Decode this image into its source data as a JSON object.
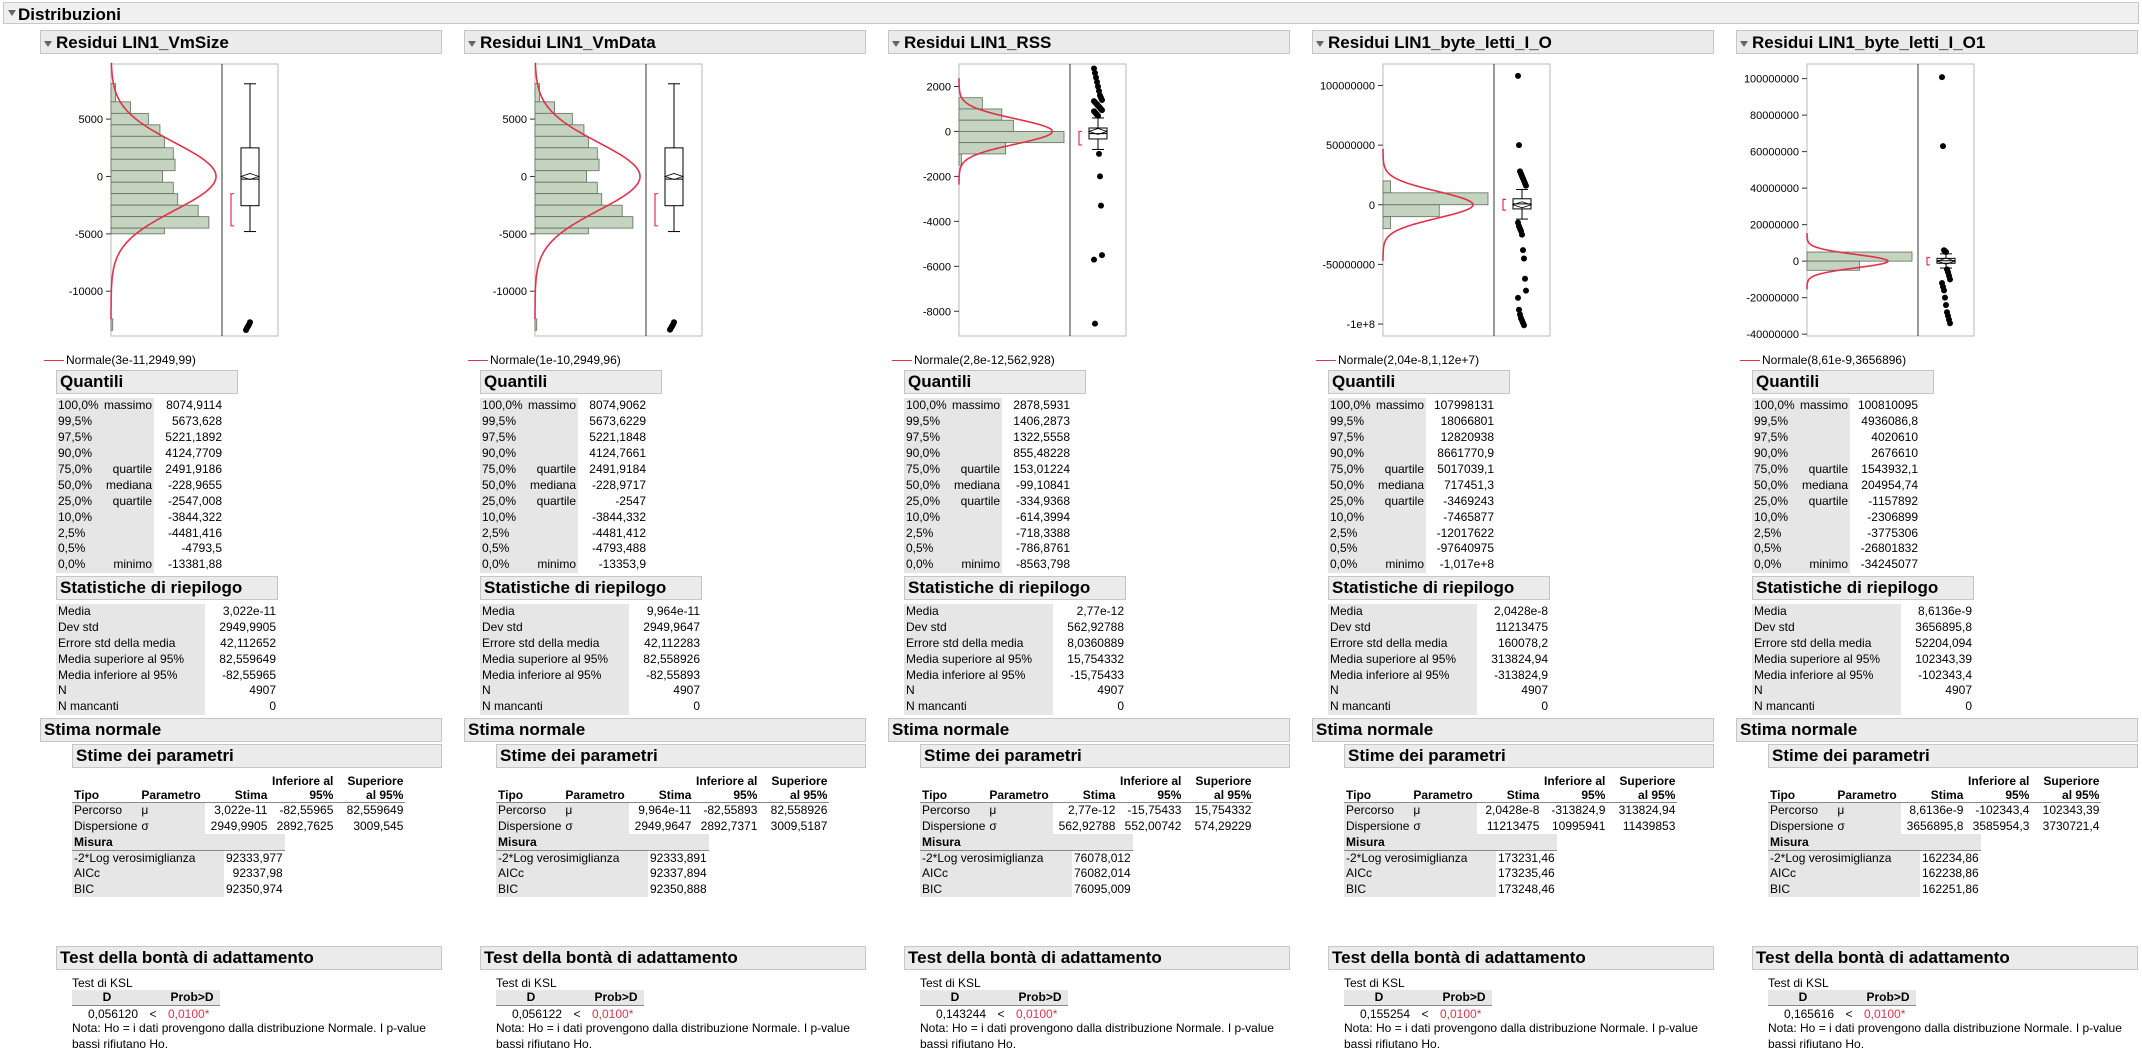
{
  "window_title": "Distribuzioni",
  "common": {
    "quantili": "Quantili",
    "statistiche": "Statistiche di riepilogo",
    "stima_normale": "Stima normale",
    "stime_parametri": "Stime dei parametri",
    "col_tipo": "Tipo",
    "col_parametro": "Parametro",
    "col_stima": "Stima",
    "col_inf": "Inferiore al 95%",
    "col_sup": "Superiore al 95%",
    "row_percorso": "Percorso",
    "row_dispersione": "Dispersione",
    "mu": "μ",
    "sigma": "σ",
    "misura": "Misura",
    "m_logver": "-2*Log verosimiglianza",
    "m_aicc": "AICc",
    "m_bic": "BIC",
    "test_bonta": "Test della bontà di adattamento",
    "test_ksl": "Test di KSL",
    "col_d": "D",
    "col_prob": "Prob>D",
    "less_than": "<",
    "nota": "Nota: Ho = i dati provengono dalla distribuzione Normale. I p-value bassi rifiutano Ho.",
    "quantile_rows": [
      {
        "pct": "100,0%",
        "lbl": "massimo"
      },
      {
        "pct": "99,5%",
        "lbl": ""
      },
      {
        "pct": "97,5%",
        "lbl": ""
      },
      {
        "pct": "90,0%",
        "lbl": ""
      },
      {
        "pct": "75,0%",
        "lbl": "quartile"
      },
      {
        "pct": "50,0%",
        "lbl": "mediana"
      },
      {
        "pct": "25,0%",
        "lbl": "quartile"
      },
      {
        "pct": "10,0%",
        "lbl": ""
      },
      {
        "pct": "2,5%",
        "lbl": ""
      },
      {
        "pct": "0,5%",
        "lbl": ""
      },
      {
        "pct": "0,0%",
        "lbl": "minimo"
      }
    ],
    "stat_labels": [
      "Media",
      "Dev std",
      "Errore std della media",
      "Media superiore al 95%",
      "Media inferiore al 95%",
      "N",
      "N mancanti"
    ],
    "colors": {
      "curve": "#e0324b",
      "bar": "#c4d4c0",
      "pvalue": "#e0324b"
    }
  },
  "panels": [
    {
      "title": "Residui LIN1_VmSize",
      "legend": "Normale(3e-11,2949,99)",
      "quantiles": [
        "8074,9114",
        "5673,628",
        "5221,1892",
        "4124,7709",
        "2491,9186",
        "-228,9655",
        "-2547,008",
        "-3844,322",
        "-4481,416",
        "-4793,5",
        "-13381,88"
      ],
      "stats": [
        "3,022e-11",
        "2949,9905",
        "42,112652",
        "82,559649",
        "-82,55965",
        "4907",
        "0"
      ],
      "params": {
        "mu": [
          "3,022e-11",
          "-82,55965",
          "82,559649"
        ],
        "sigma": [
          "2949,9905",
          "2892,7625",
          "3009,545"
        ]
      },
      "measures": [
        "92333,977",
        "92337,98",
        "92350,974"
      ],
      "ksl": {
        "d": "0,056120",
        "p": "0,0100*"
      },
      "chart_data": {
        "type": "histogram",
        "yticks": [
          {
            "v": 5000,
            "label": "5000"
          },
          {
            "v": 0,
            "label": "0"
          },
          {
            "v": -5000,
            "label": "-5000"
          },
          {
            "v": -10000,
            "label": "-10000"
          }
        ],
        "ylim": [
          -13900,
          9800
        ],
        "bins": [
          {
            "lo": 6500,
            "hi": 8100,
            "c": 5
          },
          {
            "lo": 5500,
            "hi": 6500,
            "c": 22
          },
          {
            "lo": 4500,
            "hi": 5500,
            "c": 42
          },
          {
            "lo": 3500,
            "hi": 4500,
            "c": 55
          },
          {
            "lo": 2500,
            "hi": 3500,
            "c": 60
          },
          {
            "lo": 1500,
            "hi": 2500,
            "c": 70
          },
          {
            "lo": 500,
            "hi": 1500,
            "c": 72
          },
          {
            "lo": -500,
            "hi": 500,
            "c": 58
          },
          {
            "lo": -1500,
            "hi": -500,
            "c": 70
          },
          {
            "lo": -2500,
            "hi": -1500,
            "c": 75
          },
          {
            "lo": -3500,
            "hi": -2500,
            "c": 98
          },
          {
            "lo": -4500,
            "hi": -3500,
            "c": 110
          },
          {
            "lo": -5000,
            "hi": -4500,
            "c": 60
          },
          {
            "lo": -13400,
            "hi": -12400,
            "c": 2
          }
        ],
        "normal": {
          "mu": 0,
          "sd": 2950,
          "peak": 118
        },
        "box": {
          "min": -4800,
          "q1": -2547,
          "median": -229,
          "q3": 2492,
          "max": 8075,
          "mean": 0,
          "shortest_half": [
            -4300,
            -1500
          ]
        },
        "outliers": [
          -13380,
          -13200,
          -13050,
          -12900,
          -12700
        ]
      }
    },
    {
      "title": "Residui LIN1_VmData",
      "legend": "Normale(1e-10,2949,96)",
      "quantiles": [
        "8074,9062",
        "5673,6229",
        "5221,1848",
        "4124,7661",
        "2491,9184",
        "-228,9717",
        "-2547",
        "-3844,332",
        "-4481,412",
        "-4793,488",
        "-13353,9"
      ],
      "stats": [
        "9,964e-11",
        "2949,9647",
        "42,112283",
        "82,558926",
        "-82,55893",
        "4907",
        "0"
      ],
      "params": {
        "mu": [
          "9,964e-11",
          "-82,55893",
          "82,558926"
        ],
        "sigma": [
          "2949,9647",
          "2892,7371",
          "3009,5187"
        ]
      },
      "measures": [
        "92333,891",
        "92337,894",
        "92350,888"
      ],
      "ksl": {
        "d": "0,056122",
        "p": "0,0100*"
      },
      "chart_data": {
        "type": "histogram",
        "yticks": [
          {
            "v": 5000,
            "label": "5000"
          },
          {
            "v": 0,
            "label": "0"
          },
          {
            "v": -5000,
            "label": "-5000"
          },
          {
            "v": -10000,
            "label": "-10000"
          }
        ],
        "ylim": [
          -13900,
          9800
        ],
        "bins": [
          {
            "lo": 6500,
            "hi": 8100,
            "c": 5
          },
          {
            "lo": 5500,
            "hi": 6500,
            "c": 22
          },
          {
            "lo": 4500,
            "hi": 5500,
            "c": 42
          },
          {
            "lo": 3500,
            "hi": 4500,
            "c": 55
          },
          {
            "lo": 2500,
            "hi": 3500,
            "c": 60
          },
          {
            "lo": 1500,
            "hi": 2500,
            "c": 70
          },
          {
            "lo": 500,
            "hi": 1500,
            "c": 72
          },
          {
            "lo": -500,
            "hi": 500,
            "c": 58
          },
          {
            "lo": -1500,
            "hi": -500,
            "c": 70
          },
          {
            "lo": -2500,
            "hi": -1500,
            "c": 75
          },
          {
            "lo": -3500,
            "hi": -2500,
            "c": 98
          },
          {
            "lo": -4500,
            "hi": -3500,
            "c": 110
          },
          {
            "lo": -5000,
            "hi": -4500,
            "c": 60
          },
          {
            "lo": -13400,
            "hi": -12400,
            "c": 2
          }
        ],
        "normal": {
          "mu": 0,
          "sd": 2950,
          "peak": 118
        },
        "box": {
          "min": -4800,
          "q1": -2547,
          "median": -229,
          "q3": 2492,
          "max": 8075,
          "mean": 0,
          "shortest_half": [
            -4300,
            -1500
          ]
        },
        "outliers": [
          -13350,
          -13200,
          -13050,
          -12900,
          -12700
        ]
      }
    },
    {
      "title": "Residui LIN1_RSS",
      "legend": "Normale(2,8e-12,562,928)",
      "quantiles": [
        "2878,5931",
        "1406,2873",
        "1322,5558",
        "855,48228",
        "153,01224",
        "-99,10841",
        "-334,9368",
        "-614,3994",
        "-718,3388",
        "-786,8761",
        "-8563,798"
      ],
      "stats": [
        "2,77e-12",
        "562,92788",
        "8,0360889",
        "15,754332",
        "-15,75433",
        "4907",
        "0"
      ],
      "params": {
        "mu": [
          "2,77e-12",
          "-15,75433",
          "15,754332"
        ],
        "sigma": [
          "562,92788",
          "552,00742",
          "574,29229"
        ]
      },
      "measures": [
        "76078,012",
        "76082,014",
        "76095,009"
      ],
      "ksl": {
        "d": "0,143244",
        "p": "0,0100*"
      },
      "chart_data": {
        "type": "histogram",
        "yticks": [
          {
            "v": 2000,
            "label": "2000"
          },
          {
            "v": 0,
            "label": "0"
          },
          {
            "v": -2000,
            "label": "-2000"
          },
          {
            "v": -4000,
            "label": "-4000"
          },
          {
            "v": -6000,
            "label": "-6000"
          },
          {
            "v": -8000,
            "label": "-8000"
          }
        ],
        "ylim": [
          -9100,
          3000
        ],
        "bins": [
          {
            "lo": 1000,
            "hi": 1500,
            "c": 30
          },
          {
            "lo": 500,
            "hi": 1000,
            "c": 55
          },
          {
            "lo": 0,
            "hi": 500,
            "c": 70
          },
          {
            "lo": -500,
            "hi": 0,
            "c": 135
          },
          {
            "lo": -1000,
            "hi": -500,
            "c": 60
          },
          {
            "lo": -1500,
            "hi": -1000,
            "c": 3
          }
        ],
        "normal": {
          "mu": 0,
          "sd": 563,
          "peak": 120
        },
        "box": {
          "min": -800,
          "q1": -335,
          "median": -99,
          "q3": 153,
          "max": 600,
          "mean": 0,
          "shortest_half": [
            -600,
            0
          ]
        },
        "outliers": [
          2800,
          2600,
          2400,
          2200,
          2000,
          1800,
          1600,
          1500,
          1400,
          1350,
          1300,
          1250,
          1200,
          1150,
          1100,
          1050,
          1000,
          950,
          900,
          850,
          800,
          750,
          700,
          -1000,
          -2000,
          -3300,
          -5500,
          -5700,
          -8550
        ]
      }
    },
    {
      "title": "Residui LIN1_byte_letti_I_O",
      "legend": "Normale(2,04e-8,1,12e+7)",
      "quantiles": [
        "107998131",
        "18066801",
        "12820938",
        "8661770,9",
        "5017039,1",
        "717451,3",
        "-3469243",
        "-7465877",
        "-12017622",
        "-97640975",
        "-1,017e+8"
      ],
      "stats": [
        "2,0428e-8",
        "11213475",
        "160078,2",
        "313824,94",
        "-313824,9",
        "4907",
        "0"
      ],
      "params": {
        "mu": [
          "2,0428e-8",
          "-313824,9",
          "313824,94"
        ],
        "sigma": [
          "11213475",
          "10995941",
          "11439853"
        ]
      },
      "measures": [
        "173231,46",
        "173235,46",
        "173248,46"
      ],
      "ksl": {
        "d": "0,155254",
        "p": "0,0100*"
      },
      "chart_data": {
        "type": "histogram",
        "yticks": [
          {
            "v": 100000000,
            "label": "100000000"
          },
          {
            "v": 50000000,
            "label": "50000000"
          },
          {
            "v": 0,
            "label": "0"
          },
          {
            "v": -50000000,
            "label": "-50000000"
          },
          {
            "v": -100000000,
            "label": "-1e+8"
          }
        ],
        "ylim": [
          -110000000,
          118000000
        ],
        "bins": [
          {
            "lo": 10000000,
            "hi": 20000000,
            "c": 10
          },
          {
            "lo": 0,
            "hi": 10000000,
            "c": 140
          },
          {
            "lo": -10000000,
            "hi": 0,
            "c": 75
          },
          {
            "lo": -20000000,
            "hi": -10000000,
            "c": 10
          }
        ],
        "normal": {
          "mu": 0,
          "sd": 11200000,
          "peak": 120
        },
        "box": {
          "min": -12000000,
          "q1": -3469243,
          "median": 717451,
          "q3": 5017039,
          "max": 12800000,
          "mean": 0,
          "shortest_half": [
            -4500000,
            4500000
          ]
        },
        "outliers": [
          108000000,
          50000000,
          28000000,
          26000000,
          24000000,
          22000000,
          20000000,
          18000000,
          16000000,
          -15000000,
          -18000000,
          -20000000,
          -22000000,
          -25000000,
          -38000000,
          -45000000,
          -62000000,
          -72000000,
          -78000000,
          -88000000,
          -92000000,
          -95000000,
          -97000000,
          -99000000,
          -101000000
        ]
      }
    },
    {
      "title": "Residui LIN1_byte_letti_I_O1",
      "legend": "Normale(8,61e-9,3656896)",
      "quantiles": [
        "100810095",
        "4936086,8",
        "4020610",
        "2676610",
        "1543932,1",
        "204954,74",
        "-1157892",
        "-2306899",
        "-3775306",
        "-26801832",
        "-34245077"
      ],
      "stats": [
        "8,6136e-9",
        "3656895,8",
        "52204,094",
        "102343,39",
        "-102343,4",
        "4907",
        "0"
      ],
      "params": {
        "mu": [
          "8,6136e-9",
          "-102343,4",
          "102343,39"
        ],
        "sigma": [
          "3656895,8",
          "3585954,3",
          "3730721,4"
        ]
      },
      "measures": [
        "162234,86",
        "162238,86",
        "162251,86"
      ],
      "ksl": {
        "d": "0,165616",
        "p": "0,0100*"
      },
      "chart_data": {
        "type": "histogram",
        "yticks": [
          {
            "v": 100000000,
            "label": "100000000"
          },
          {
            "v": 80000000,
            "label": "80000000"
          },
          {
            "v": 60000000,
            "label": "60000000"
          },
          {
            "v": 40000000,
            "label": "40000000"
          },
          {
            "v": 20000000,
            "label": "20000000"
          },
          {
            "v": 0,
            "label": "0"
          },
          {
            "v": -20000000,
            "label": "-20000000"
          },
          {
            "v": -40000000,
            "label": "-40000000"
          }
        ],
        "ylim": [
          -41000000,
          108000000
        ],
        "bins": [
          {
            "lo": 0,
            "hi": 5000000,
            "c": 140
          },
          {
            "lo": -5000000,
            "hi": 0,
            "c": 70
          }
        ],
        "normal": {
          "mu": 0,
          "sd": 3657000,
          "peak": 108
        },
        "box": {
          "min": -3800000,
          "q1": -1157892,
          "median": 204955,
          "q3": 1543932,
          "max": 4000000,
          "mean": 0,
          "shortest_half": [
            -2000000,
            2000000
          ]
        },
        "outliers": [
          100800000,
          63000000,
          6000000,
          5500000,
          5000000,
          -4500000,
          -6000000,
          -8000000,
          -10000000,
          -12000000,
          -14000000,
          -16000000,
          -20000000,
          -24000000,
          -28000000,
          -30000000,
          -32000000,
          -34000000
        ]
      }
    }
  ]
}
